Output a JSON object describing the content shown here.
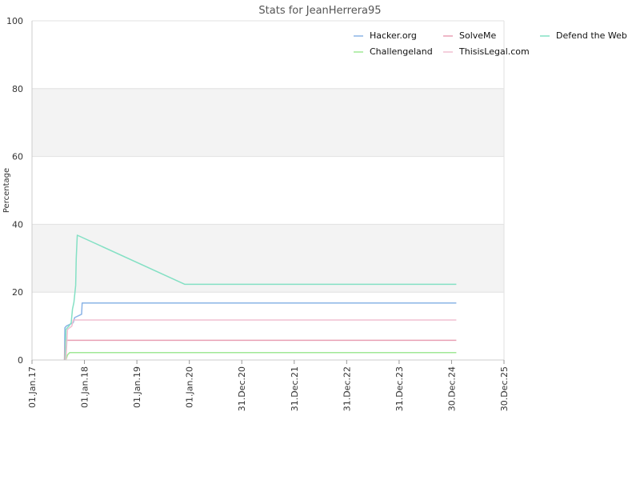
{
  "chart_data": {
    "type": "line",
    "title": "Stats for JeanHerrera95",
    "xlabel": "",
    "ylabel": "Percentage",
    "ylim": [
      0,
      100
    ],
    "y_ticks": [
      "0",
      "20",
      "40",
      "60",
      "80",
      "100"
    ],
    "x_range": [
      "2017-01-01",
      "2025-12-30"
    ],
    "x_ticks": [
      {
        "label": "01.Jan.17",
        "date": "2017-01-01"
      },
      {
        "label": "01.Jan.18",
        "date": "2018-01-01"
      },
      {
        "label": "01.Jan.19",
        "date": "2019-01-01"
      },
      {
        "label": "01.Jan.20",
        "date": "2020-01-01"
      },
      {
        "label": "31.Dec.20",
        "date": "2020-12-31"
      },
      {
        "label": "31.Dec.21",
        "date": "2021-12-31"
      },
      {
        "label": "31.Dec.22",
        "date": "2022-12-31"
      },
      {
        "label": "31.Dec.23",
        "date": "2023-12-31"
      },
      {
        "label": "30.Dec.24",
        "date": "2024-12-30"
      },
      {
        "label": "30.Dec.25",
        "date": "2025-12-30"
      }
    ],
    "grid": true,
    "legend_position": "top-right",
    "series": [
      {
        "name": "Hacker.org",
        "color": "#8ab4e6",
        "points": [
          [
            "2017-08-15",
            0
          ],
          [
            "2017-08-18",
            9.5
          ],
          [
            "2017-08-28",
            10
          ],
          [
            "2017-10-15",
            11
          ],
          [
            "2017-10-25",
            12.5
          ],
          [
            "2017-12-12",
            13.5
          ],
          [
            "2017-12-16",
            16.8
          ],
          [
            "2025-02-01",
            16.8
          ]
        ]
      },
      {
        "name": "SolveMe",
        "color": "#e8a0b4",
        "points": [
          [
            "2017-08-15",
            0
          ],
          [
            "2017-08-22",
            5.8
          ],
          [
            "2025-02-01",
            5.8
          ]
        ]
      },
      {
        "name": "Defend the Web",
        "color": "#84e0c4",
        "points": [
          [
            "2017-08-20",
            0
          ],
          [
            "2017-08-25",
            9
          ],
          [
            "2017-09-15",
            10
          ],
          [
            "2017-10-01",
            11
          ],
          [
            "2017-10-10",
            15
          ],
          [
            "2017-10-20",
            17
          ],
          [
            "2017-11-01",
            22
          ],
          [
            "2017-11-05",
            30
          ],
          [
            "2017-11-12",
            36.8
          ],
          [
            "2019-12-01",
            22.3
          ],
          [
            "2025-02-01",
            22.3
          ]
        ]
      },
      {
        "name": "Challengeland",
        "color": "#a0e896",
        "points": [
          [
            "2017-08-25",
            0
          ],
          [
            "2017-09-05",
            1.5
          ],
          [
            "2017-09-20",
            2.2
          ],
          [
            "2025-02-01",
            2.2
          ]
        ]
      },
      {
        "name": "ThisisLegal.com",
        "color": "#f0bfd0",
        "points": [
          [
            "2017-08-25",
            0
          ],
          [
            "2017-09-05",
            9
          ],
          [
            "2017-10-05",
            10
          ],
          [
            "2017-10-15",
            11.8
          ],
          [
            "2025-02-01",
            11.8
          ]
        ]
      }
    ]
  }
}
